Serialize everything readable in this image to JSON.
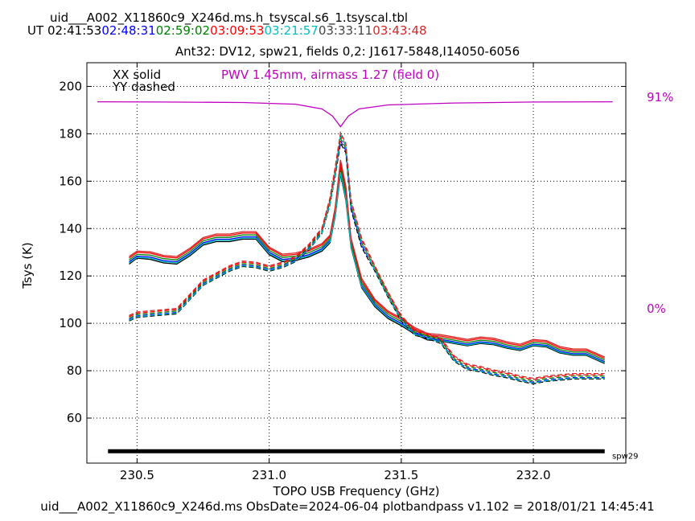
{
  "header": {
    "title": "uid___A002_X11860c9_X246d.ms.h_tsyscal.s6_1.tsyscal.tbl",
    "ut_label": "UT",
    "times": [
      {
        "text": "02:41:53",
        "color": "#000000"
      },
      {
        "text": "02:48:31",
        "color": "#0000ff"
      },
      {
        "text": "02:59:02",
        "color": "#008000"
      },
      {
        "text": "03:09:53",
        "color": "#ff0000"
      },
      {
        "text": "03:21:57",
        "color": "#00bfbf"
      },
      {
        "text": "03:33:11",
        "color": "#444444"
      },
      {
        "text": "03:43:48",
        "color": "#d62728"
      }
    ]
  },
  "footer": "uid___A002_X11860c9_X246d.ms  ObsDate=2024-06-04   plotbandpass v1.102 = 2018/01/21 14:45:41",
  "chart_data": {
    "type": "line",
    "title": "Ant32: DV12,  spw21,  fields 0,2: J1617-5848,I14050-6056",
    "xlabel": "TOPO USB Frequency (GHz)",
    "ylabel": "Tsys (K)",
    "xlim": [
      230.31,
      232.35
    ],
    "ylim": [
      41,
      210
    ],
    "xticks": [
      230.5,
      231.0,
      231.5,
      232.0
    ],
    "xtick_labels": [
      "230.5",
      "231.0",
      "231.5",
      "232.0"
    ],
    "yticks": [
      60,
      80,
      100,
      120,
      140,
      160,
      180,
      200
    ],
    "ytick_labels": [
      "60",
      "80",
      "100",
      "120",
      "140",
      "160",
      "180",
      "200"
    ],
    "grid": true,
    "legend_text": [
      "XX solid",
      "YY dashed"
    ],
    "pwv_annotation": "PWV 1.45mm, airmass 1.27 (field 0)",
    "pwv_color": "#c000c0",
    "transmission_labels": {
      "top": "91%",
      "bottom": "0%"
    },
    "spw_label": "spw29",
    "spw_bar": {
      "x": [
        230.39,
        232.27
      ],
      "y": 46
    },
    "x": [
      230.47,
      230.5,
      230.55,
      230.6,
      230.65,
      230.7,
      230.75,
      230.8,
      230.85,
      230.9,
      230.95,
      231.0,
      231.05,
      231.1,
      231.15,
      231.2,
      231.23,
      231.25,
      231.27,
      231.29,
      231.31,
      231.35,
      231.4,
      231.45,
      231.5,
      231.55,
      231.6,
      231.65,
      231.7,
      231.75,
      231.8,
      231.85,
      231.9,
      231.95,
      232.0,
      232.05,
      232.1,
      232.15,
      232.2,
      232.27
    ],
    "series": [
      {
        "style": "solid",
        "color": "#000000",
        "values": [
          125,
          127.5,
          127,
          125.5,
          125,
          128.5,
          133,
          134.5,
          134.5,
          135.5,
          135.5,
          129,
          126,
          126.5,
          128,
          130.5,
          134,
          145,
          163,
          152,
          132,
          115,
          107,
          102,
          99,
          95.5,
          93,
          92.5,
          91.5,
          90.5,
          91.5,
          91,
          89.5,
          88.5,
          90.5,
          90,
          87.5,
          86.5,
          86.5,
          83
        ]
      },
      {
        "style": "solid",
        "color": "#0000ff",
        "values": [
          126,
          128.3,
          128,
          126.5,
          126,
          129.5,
          134,
          135.5,
          135.5,
          136.5,
          136.5,
          130,
          127,
          127.5,
          129,
          131.5,
          135,
          146,
          164.5,
          153.5,
          133,
          116,
          108,
          103,
          100,
          96.3,
          93.7,
          93.2,
          92.2,
          91.2,
          92.2,
          91.7,
          90.2,
          89.2,
          91.2,
          90.7,
          88.2,
          87.2,
          87.2,
          83.8
        ]
      },
      {
        "style": "solid",
        "color": "#008000",
        "values": [
          126.8,
          129.1,
          128.8,
          127.3,
          126.8,
          130.3,
          134.8,
          136.3,
          136.3,
          137.3,
          137.3,
          130.8,
          127.8,
          128.3,
          129.8,
          132.3,
          135.8,
          147,
          166,
          155,
          134,
          117,
          108.8,
          103.8,
          100.8,
          97,
          94.4,
          93.9,
          92.9,
          91.9,
          92.9,
          92.4,
          90.9,
          89.9,
          91.9,
          91.4,
          88.9,
          87.9,
          87.9,
          84.5
        ]
      },
      {
        "style": "solid",
        "color": "#ff0000",
        "values": [
          127.6,
          129.9,
          129.6,
          128.1,
          127.6,
          131.1,
          135.6,
          137.1,
          137.1,
          138.1,
          138.1,
          131.6,
          128.6,
          129.1,
          130.6,
          133.1,
          136.6,
          148,
          167.5,
          156.5,
          135,
          118,
          109.6,
          104.6,
          101.6,
          97.7,
          95.1,
          94.6,
          93.6,
          92.6,
          93.6,
          93.1,
          91.6,
          90.6,
          92.6,
          92.1,
          89.6,
          88.6,
          88.6,
          85.2
        ]
      },
      {
        "style": "solid",
        "color": "#00bfbf",
        "values": [
          125.5,
          127.8,
          127.5,
          126,
          125.5,
          129,
          133.5,
          135,
          135,
          136,
          136,
          129.5,
          126.5,
          127,
          128.5,
          131,
          134.5,
          145.5,
          163.8,
          152.8,
          132.5,
          115.5,
          107.5,
          102.5,
          99.5,
          95.8,
          93.3,
          92.8,
          91.8,
          90.8,
          91.8,
          91.3,
          89.8,
          88.8,
          90.8,
          90.3,
          87.8,
          86.8,
          86.8,
          83.4
        ]
      },
      {
        "style": "solid",
        "color": "#d62728",
        "values": [
          128.2,
          130.5,
          130.2,
          128.7,
          128.2,
          131.7,
          136.2,
          137.7,
          137.7,
          138.7,
          138.7,
          132.2,
          129.2,
          129.7,
          131.2,
          133.7,
          137.2,
          149,
          169,
          158,
          136,
          119,
          110.2,
          105.2,
          102.2,
          98.3,
          95.7,
          95.2,
          94.2,
          93.2,
          94.2,
          93.7,
          92.2,
          91.2,
          93.2,
          92.7,
          90.2,
          89.2,
          89.2,
          85.8
        ]
      },
      {
        "style": "dashed",
        "color": "#000000",
        "values": [
          101,
          102.5,
          103,
          103.5,
          104,
          110,
          116,
          119,
          122,
          124,
          123.5,
          122,
          123.5,
          126,
          131,
          138,
          150,
          162,
          176,
          172,
          148,
          132,
          122,
          111,
          101,
          95,
          93.5,
          91.5,
          84,
          80.5,
          79.5,
          78,
          77,
          75.5,
          74.5,
          75.5,
          76,
          76.5,
          76.5,
          76.5
        ]
      },
      {
        "style": "dashed",
        "color": "#0000ff",
        "values": [
          101.6,
          103.1,
          103.6,
          104.1,
          104.6,
          110.6,
          116.6,
          119.6,
          122.6,
          124.6,
          124.1,
          122.6,
          124.1,
          126.6,
          131.6,
          138.6,
          150.8,
          163,
          177,
          173,
          149,
          133,
          122.6,
          111.6,
          101.6,
          95.6,
          94.1,
          92.1,
          84.6,
          81.1,
          80.1,
          78.6,
          77.6,
          76.1,
          75.1,
          76.1,
          76.6,
          77.1,
          77.1,
          77.1
        ]
      },
      {
        "style": "dashed",
        "color": "#008000",
        "values": [
          102.2,
          103.7,
          104.2,
          104.7,
          105.2,
          111.2,
          117.2,
          120.2,
          123.2,
          125.2,
          124.7,
          123.2,
          124.7,
          127.2,
          132.2,
          139.2,
          151.6,
          164,
          178,
          174,
          150,
          134,
          123.2,
          112.2,
          102.2,
          96.2,
          94.7,
          92.7,
          85.2,
          81.7,
          80.7,
          79.2,
          78.2,
          76.7,
          75.7,
          76.7,
          77.2,
          77.7,
          77.7,
          77.7
        ]
      },
      {
        "style": "dashed",
        "color": "#ff0000",
        "values": [
          102.8,
          104.3,
          104.8,
          105.3,
          105.8,
          111.8,
          117.8,
          120.8,
          123.8,
          125.8,
          125.3,
          123.8,
          125.3,
          127.8,
          132.8,
          139.8,
          152.4,
          165,
          179,
          175,
          151,
          135,
          123.8,
          112.8,
          102.8,
          96.8,
          95.3,
          93.3,
          85.8,
          82.3,
          81.3,
          79.8,
          78.8,
          77.3,
          76.3,
          77.3,
          77.8,
          78.3,
          78.3,
          78.3
        ]
      },
      {
        "style": "dashed",
        "color": "#00bfbf",
        "values": [
          101.3,
          102.8,
          103.3,
          103.8,
          104.3,
          110.3,
          116.3,
          119.3,
          122.3,
          124.3,
          123.8,
          122.3,
          123.8,
          126.3,
          131.3,
          138.3,
          150.4,
          162.5,
          180,
          175,
          150,
          134,
          122.3,
          111.3,
          101.3,
          95.3,
          93.8,
          91.8,
          84.3,
          80.8,
          79.8,
          78.3,
          77.3,
          75.8,
          74.8,
          75.8,
          76.3,
          76.8,
          76.8,
          76.8
        ]
      },
      {
        "style": "dashed",
        "color": "#d62728",
        "values": [
          103.3,
          104.8,
          105.3,
          105.8,
          106.3,
          112.3,
          118.3,
          121.3,
          124.3,
          126.3,
          125.8,
          124.3,
          125.8,
          128.3,
          133.3,
          140.3,
          153,
          166,
          180.5,
          176,
          152,
          136,
          124.3,
          113.3,
          103.3,
          97.3,
          95.8,
          93.8,
          86.3,
          82.8,
          81.8,
          80.3,
          79.3,
          77.8,
          76.8,
          77.8,
          78.3,
          78.8,
          78.8,
          78.8
        ]
      }
    ],
    "atmosphere": {
      "color": "#c000c0",
      "x": [
        230.35,
        230.6,
        230.9,
        231.1,
        231.2,
        231.24,
        231.26,
        231.27,
        231.28,
        231.3,
        231.34,
        231.45,
        231.7,
        232.0,
        232.3
      ],
      "values": [
        193.5,
        193.4,
        193.2,
        192.5,
        190.5,
        187.5,
        184.5,
        183,
        184.5,
        187.5,
        190.5,
        192.2,
        193,
        193.4,
        193.5
      ]
    }
  }
}
